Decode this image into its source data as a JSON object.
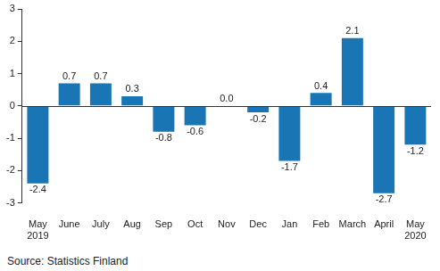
{
  "chart_data": {
    "type": "bar",
    "source": "Source: Statistics Finland",
    "categories": [
      [
        "May",
        "2019"
      ],
      "June",
      "July",
      "Aug",
      "Sep",
      "Oct",
      "Nov",
      "Dec",
      "Jan",
      "Feb",
      "March",
      "April",
      [
        "May",
        "2020"
      ]
    ],
    "values": [
      -2.4,
      0.7,
      0.7,
      0.3,
      -0.8,
      -0.6,
      0.0,
      -0.2,
      -1.7,
      0.4,
      2.1,
      -2.7,
      -1.2
    ],
    "value_labels": [
      "-2.4",
      "0.7",
      "0.7",
      "0.3",
      "-0.8",
      "-0.6",
      "0.0",
      "-0.2",
      "-1.7",
      "0.4",
      "2.1",
      "-2.7",
      "-1.2"
    ],
    "data_labels": true,
    "color": "#1a75b5",
    "ylim": [
      -3,
      3
    ],
    "yticks": [
      -3,
      -2,
      -1,
      0,
      1,
      2,
      3
    ],
    "grid": false
  }
}
